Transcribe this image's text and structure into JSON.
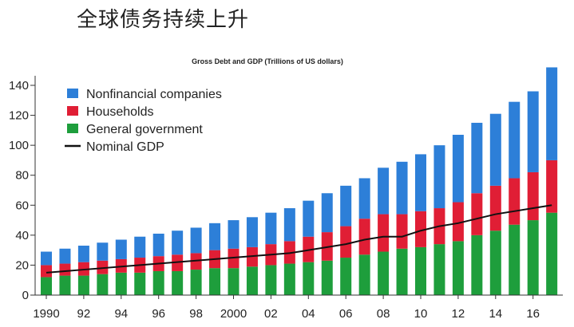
{
  "heading": "全球债务持续上升",
  "chart_data": {
    "type": "bar",
    "stacked": true,
    "title": "Gross Debt and GDP (Trillions of US dollars)",
    "xlabel": "",
    "ylabel": "",
    "ylim": [
      0,
      150
    ],
    "yticks": [
      0,
      20,
      40,
      60,
      80,
      100,
      120,
      140
    ],
    "years": [
      1990,
      1991,
      1992,
      1993,
      1994,
      1995,
      1996,
      1997,
      1998,
      1999,
      2000,
      2001,
      2002,
      2003,
      2004,
      2005,
      2006,
      2007,
      2008,
      2009,
      2010,
      2011,
      2012,
      2013,
      2014,
      2015,
      2016,
      2017
    ],
    "xtick_labels": [
      {
        "year": 1990,
        "label": "1990"
      },
      {
        "year": 1992,
        "label": "92"
      },
      {
        "year": 1994,
        "label": "94"
      },
      {
        "year": 1996,
        "label": "96"
      },
      {
        "year": 1998,
        "label": "98"
      },
      {
        "year": 2000,
        "label": "2000"
      },
      {
        "year": 2002,
        "label": "02"
      },
      {
        "year": 2004,
        "label": "04"
      },
      {
        "year": 2006,
        "label": "06"
      },
      {
        "year": 2008,
        "label": "08"
      },
      {
        "year": 2010,
        "label": "10"
      },
      {
        "year": 2012,
        "label": "12"
      },
      {
        "year": 2014,
        "label": "14"
      },
      {
        "year": 2016,
        "label": "16"
      }
    ],
    "series": [
      {
        "name": "General government",
        "color": "#1e9e3c",
        "values": [
          12,
          13,
          13,
          14,
          15,
          15,
          16,
          16,
          17,
          18,
          18,
          19,
          20,
          21,
          22,
          23,
          25,
          27,
          29,
          31,
          32,
          34,
          36,
          40,
          43,
          47,
          50,
          55
        ]
      },
      {
        "name": "Households",
        "color": "#e01e35",
        "values": [
          8,
          8,
          9,
          9,
          9,
          10,
          10,
          11,
          11,
          12,
          13,
          13,
          14,
          15,
          17,
          19,
          21,
          24,
          25,
          23,
          24,
          24,
          26,
          28,
          30,
          31,
          32,
          35
        ]
      },
      {
        "name": "Nonfinancial companies",
        "color": "#2d7fd8",
        "values": [
          9,
          10,
          11,
          12,
          13,
          14,
          15,
          16,
          17,
          18,
          19,
          20,
          21,
          22,
          24,
          26,
          27,
          27,
          31,
          35,
          38,
          42,
          45,
          47,
          48,
          51,
          54,
          62
        ]
      }
    ],
    "line": {
      "name": "Nominal GDP",
      "color": "#111111",
      "values": [
        15,
        16,
        17,
        18,
        19,
        20,
        21,
        22,
        23,
        24,
        25,
        26,
        27,
        28,
        30,
        32,
        34,
        37,
        39,
        39,
        43,
        46,
        48,
        51,
        54,
        56,
        58,
        60
      ]
    },
    "legend": [
      {
        "label": "Nonfinancial companies",
        "kind": "swatch",
        "color": "#2d7fd8"
      },
      {
        "label": "Households",
        "kind": "swatch",
        "color": "#e01e35"
      },
      {
        "label": "General government",
        "kind": "swatch",
        "color": "#1e9e3c"
      },
      {
        "label": "Nominal GDP",
        "kind": "line",
        "color": "#111111"
      }
    ]
  }
}
